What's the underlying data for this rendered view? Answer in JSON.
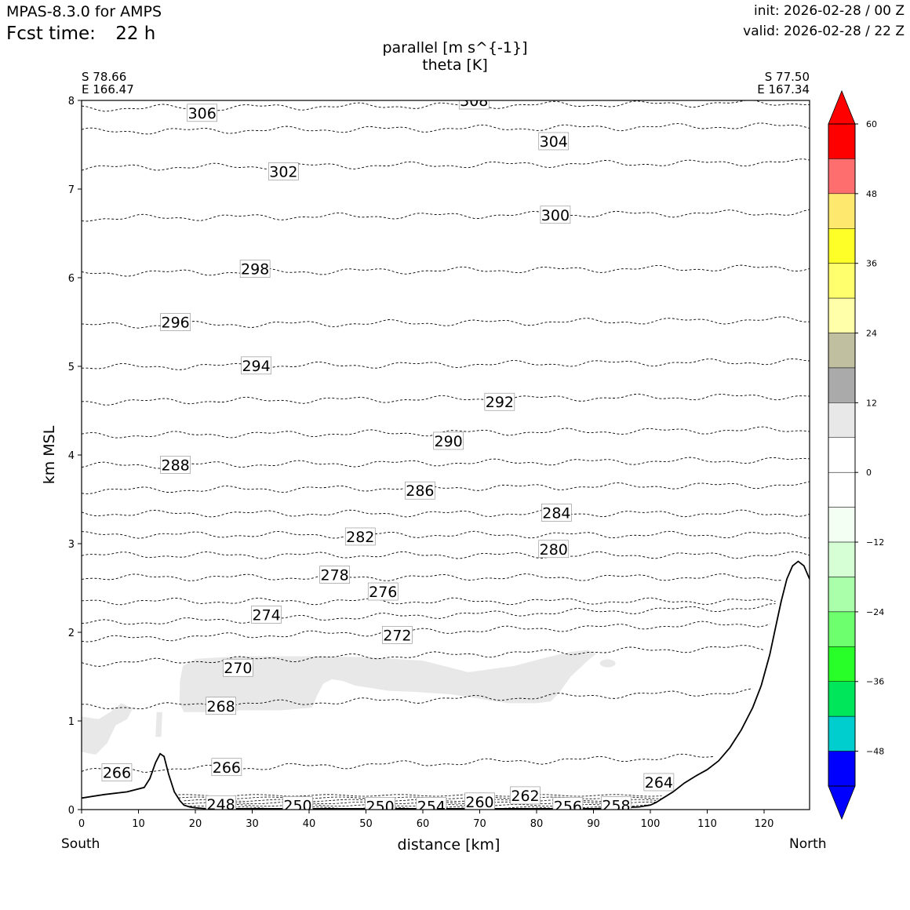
{
  "header": {
    "model": "MPAS-8.3.0 for AMPS",
    "fcst_prefix": "Fcst time:",
    "fcst_value": "22 h",
    "init": "init: 2026-02-28 / 00 Z",
    "valid": "valid: 2026-02-28 / 22 Z"
  },
  "chart_data": {
    "type": "cross-section contour",
    "title_line1": "parallel [m s^{-1}]",
    "title_line2": "theta [K]",
    "start_point": {
      "lat": "S 78.66",
      "lon": "E 166.47",
      "label": "South"
    },
    "end_point": {
      "lat": "S 77.50",
      "lon": "E 167.34",
      "label": "North"
    },
    "xlabel": "distance [km]",
    "ylabel": "km MSL",
    "xlim": [
      0,
      128
    ],
    "ylim": [
      0,
      8
    ],
    "xticks": [
      "0",
      "10",
      "20",
      "30",
      "40",
      "50",
      "60",
      "70",
      "80",
      "90",
      "100",
      "110",
      "120"
    ],
    "yticks": [
      "0",
      "1",
      "2",
      "3",
      "4",
      "5",
      "6",
      "7",
      "8"
    ],
    "terrain": {
      "x": [
        0,
        4,
        8,
        11,
        12,
        13,
        13.8,
        14.5,
        15.3,
        16.3,
        17.3,
        18,
        19,
        20,
        22,
        30,
        40,
        50,
        60,
        70,
        80,
        90,
        98,
        100,
        101,
        102,
        104,
        106,
        108,
        110,
        112,
        114,
        116,
        118,
        119.5,
        121,
        122,
        123,
        124,
        125,
        126,
        127,
        128
      ],
      "y": [
        0.13,
        0.17,
        0.2,
        0.25,
        0.35,
        0.53,
        0.63,
        0.6,
        0.4,
        0.2,
        0.1,
        0.05,
        0.03,
        0.02,
        0.01,
        0.01,
        0.01,
        0.01,
        0.01,
        0.01,
        0.01,
        0.01,
        0.03,
        0.05,
        0.08,
        0.12,
        0.2,
        0.3,
        0.38,
        0.45,
        0.55,
        0.7,
        0.9,
        1.15,
        1.4,
        1.75,
        2.05,
        2.35,
        2.6,
        2.75,
        2.8,
        2.75,
        2.6
      ]
    },
    "theta_contours": [
      {
        "level": 266,
        "y": 0.43,
        "label": "266"
      },
      {
        "level": 268,
        "y": 1.15,
        "label": "268"
      },
      {
        "level": 270,
        "y": 1.65,
        "label": "270"
      },
      {
        "level": 272,
        "y": 1.92,
        "label": "272"
      },
      {
        "level": 274,
        "y": 2.1,
        "label": "274"
      },
      {
        "level": 276,
        "y": 2.35,
        "label": "276"
      },
      {
        "level": 278,
        "y": 2.62,
        "label": "278"
      },
      {
        "level": 280,
        "y": 2.87,
        "label": "280"
      },
      {
        "level": 282,
        "y": 3.1,
        "label": "282"
      },
      {
        "level": 284,
        "y": 3.34,
        "label": "284"
      },
      {
        "level": 286,
        "y": 3.6,
        "label": "286"
      },
      {
        "level": 288,
        "y": 3.88,
        "label": "288"
      },
      {
        "level": 290,
        "y": 4.22,
        "label": "290"
      },
      {
        "level": 292,
        "y": 4.6,
        "label": "292"
      },
      {
        "level": 294,
        "y": 4.99,
        "label": "294"
      },
      {
        "level": 296,
        "y": 5.46,
        "label": "296"
      },
      {
        "level": 298,
        "y": 6.05,
        "label": "298"
      },
      {
        "level": 300,
        "y": 6.67,
        "label": "300"
      },
      {
        "level": 302,
        "y": 7.24,
        "label": "302"
      },
      {
        "level": 304,
        "y": 7.65,
        "label": "304"
      },
      {
        "level": 306,
        "y": 7.91,
        "label": "306"
      },
      {
        "level": 308,
        "y": 8.05,
        "label": "308"
      }
    ],
    "contour_labels": [
      {
        "text": "306",
        "x": 21.2,
        "y": 7.86
      },
      {
        "text": "308",
        "x": 69,
        "y": 8.0
      },
      {
        "text": "304",
        "x": 83,
        "y": 7.54
      },
      {
        "text": "302",
        "x": 35.5,
        "y": 7.2
      },
      {
        "text": "300",
        "x": 83.3,
        "y": 6.71
      },
      {
        "text": "298",
        "x": 30.5,
        "y": 6.1
      },
      {
        "text": "296",
        "x": 16.5,
        "y": 5.5
      },
      {
        "text": "294",
        "x": 30.7,
        "y": 5.01
      },
      {
        "text": "292",
        "x": 73.5,
        "y": 4.6
      },
      {
        "text": "290",
        "x": 64.5,
        "y": 4.16
      },
      {
        "text": "288",
        "x": 16.5,
        "y": 3.89
      },
      {
        "text": "286",
        "x": 59.5,
        "y": 3.6
      },
      {
        "text": "284",
        "x": 83.5,
        "y": 3.35
      },
      {
        "text": "282",
        "x": 49,
        "y": 3.08
      },
      {
        "text": "280",
        "x": 83,
        "y": 2.94
      },
      {
        "text": "278",
        "x": 44.5,
        "y": 2.65
      },
      {
        "text": "276",
        "x": 53,
        "y": 2.46
      },
      {
        "text": "274",
        "x": 32.5,
        "y": 2.2
      },
      {
        "text": "272",
        "x": 55.5,
        "y": 1.97
      },
      {
        "text": "270",
        "x": 27.5,
        "y": 1.6
      },
      {
        "text": "268",
        "x": 24.5,
        "y": 1.17
      },
      {
        "text": "266",
        "x": 25.5,
        "y": 0.48
      },
      {
        "text": "266",
        "x": 6.2,
        "y": 0.42
      },
      {
        "text": "264",
        "x": 101.5,
        "y": 0.31
      },
      {
        "text": "262",
        "x": 78,
        "y": 0.16
      },
      {
        "text": "260",
        "x": 70,
        "y": 0.09
      },
      {
        "text": "258",
        "x": 94,
        "y": 0.05
      },
      {
        "text": "256",
        "x": 85.5,
        "y": 0.04
      },
      {
        "text": "254",
        "x": 61.5,
        "y": 0.04
      },
      {
        "text": "250",
        "x": 52.5,
        "y": 0.04
      },
      {
        "text": "250",
        "x": 38,
        "y": 0.05
      },
      {
        "text": "248",
        "x": 24.5,
        "y": 0.06
      }
    ],
    "shaded_region_value": "6 to 12 m s^-1 (light grey)",
    "colorbar": {
      "ticks": [
        "60",
        "48",
        "36",
        "24",
        "12",
        "0",
        "−12",
        "−24",
        "−36",
        "−48"
      ],
      "bins_top_to_bottom": [
        {
          "range": "54 to 60",
          "color": "#ff0000"
        },
        {
          "range": "48 to 54",
          "color": "#ff6e6e"
        },
        {
          "range": "42 to 48",
          "color": "#ffe86e"
        },
        {
          "range": "36 to 42",
          "color": "#ffff28"
        },
        {
          "range": "30 to 36",
          "color": "#ffff6e"
        },
        {
          "range": "24 to 30",
          "color": "#ffffaa"
        },
        {
          "range": "18 to 24",
          "color": "#c0c0a0"
        },
        {
          "range": "12 to 18",
          "color": "#aaaaaa"
        },
        {
          "range": "6 to 12",
          "color": "#e8e8e8"
        },
        {
          "range": "0 to 6",
          "color": "#ffffff"
        },
        {
          "range": "-6 to 0",
          "color": "#ffffff"
        },
        {
          "range": "-12 to -6",
          "color": "#f2fff2"
        },
        {
          "range": "-18 to -12",
          "color": "#d6ffd6"
        },
        {
          "range": "-24 to -18",
          "color": "#aaffaa"
        },
        {
          "range": "-30 to -24",
          "color": "#6eff6e"
        },
        {
          "range": "-36 to -30",
          "color": "#28ff28"
        },
        {
          "range": "-42 to -36",
          "color": "#00e65a"
        },
        {
          "range": "-48 to -42",
          "color": "#00cdcd"
        },
        {
          "range": "-54 to -48",
          "color": "#0000ff"
        }
      ],
      "over_color": "#ff0000",
      "under_color": "#0000ff"
    }
  }
}
